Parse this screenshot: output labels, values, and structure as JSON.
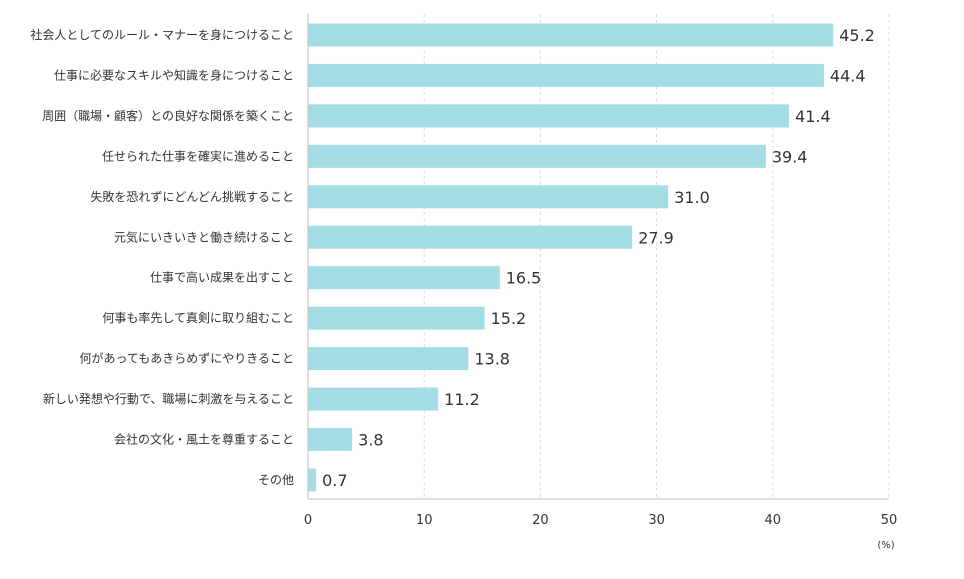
{
  "chart_data": {
    "type": "bar",
    "orientation": "horizontal",
    "categories": [
      "社会人としてのルール・マナーを身につけること",
      "仕事に必要なスキルや知識を身につけること",
      "周囲（職場・顧客）との良好な関係を築くこと",
      "任せられた仕事を確実に進めること",
      "失敗を恐れずにどんどん挑戦すること",
      "元気にいきいきと働き続けること",
      "仕事で高い成果を出すこと",
      "何事も率先して真剣に取り組むこと",
      "何があってもあきらめずにやりきること",
      "新しい発想や行動で、職場に刺激を与えること",
      "会社の文化・風土を尊重すること",
      "その他"
    ],
    "values": [
      45.2,
      44.4,
      41.4,
      39.4,
      31.0,
      27.9,
      16.5,
      15.2,
      13.8,
      11.2,
      3.8,
      0.7
    ],
    "value_labels": [
      "45.2",
      "44.4",
      "41.4",
      "39.4",
      "31.0",
      "27.9",
      "16.5",
      "15.2",
      "13.8",
      "11.2",
      "3.8",
      "0.7"
    ],
    "xlim": [
      0,
      50
    ],
    "xticks": [
      0,
      10,
      20,
      30,
      40,
      50
    ],
    "xtick_labels": [
      "0",
      "10",
      "20",
      "30",
      "40",
      "50"
    ],
    "unit": "(%)",
    "grid": "vertical dashed",
    "legend": "none",
    "bar_color": "#a4dde3"
  }
}
